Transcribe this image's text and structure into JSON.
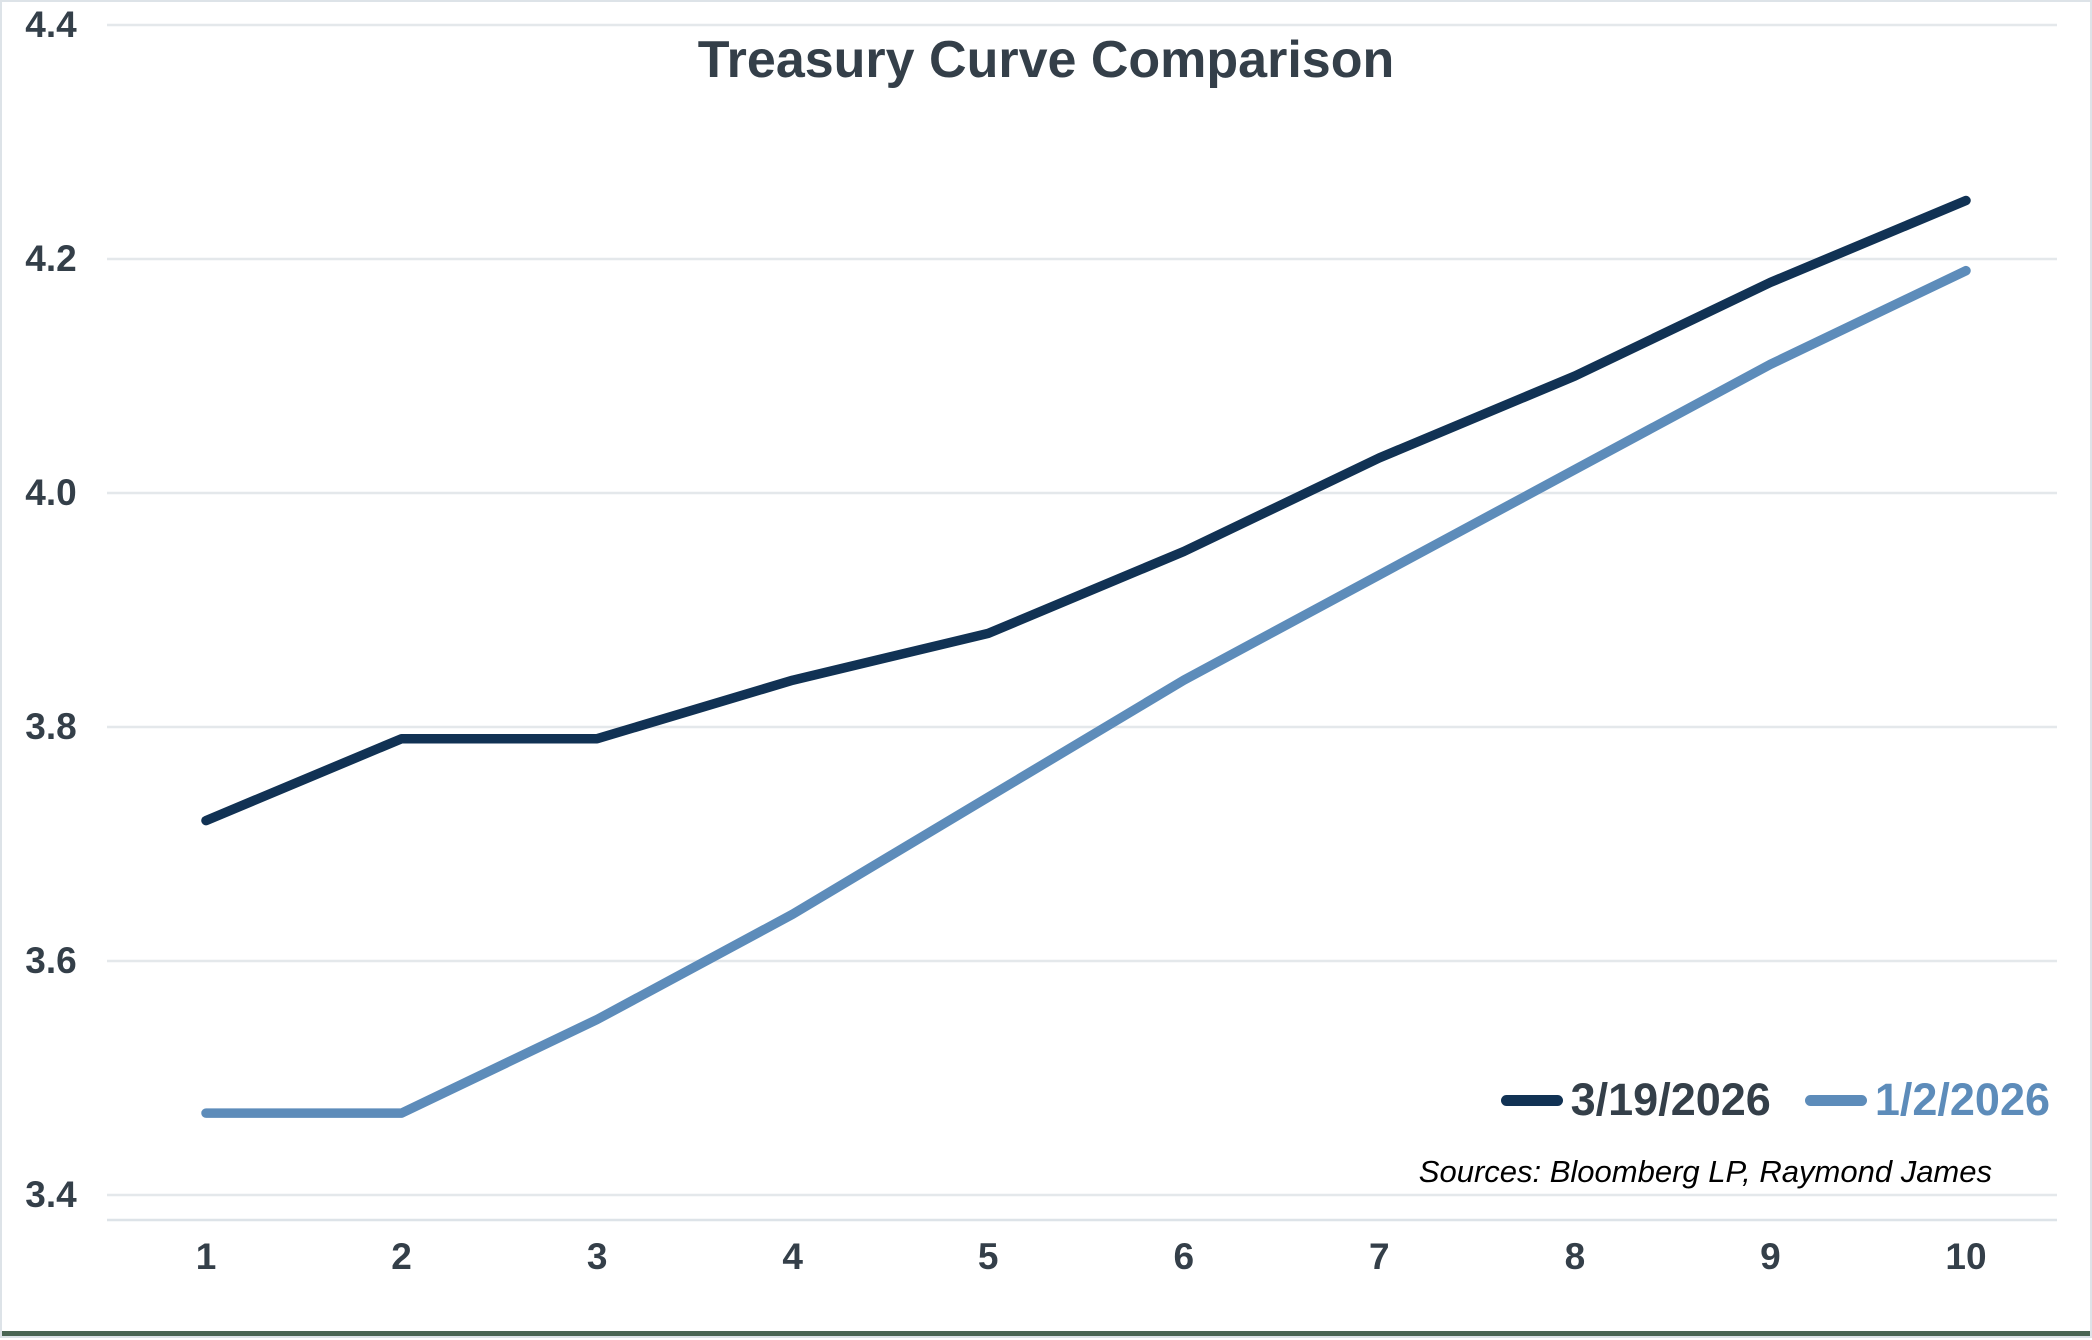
{
  "chart_data": {
    "type": "line",
    "title": "Treasury Curve Comparison",
    "x": [
      1,
      2,
      3,
      4,
      5,
      6,
      7,
      8,
      9,
      10
    ],
    "xlabel": "",
    "ylabel": "",
    "ylim": [
      3.4,
      4.4
    ],
    "yticks": [
      3.4,
      3.6,
      3.8,
      4.0,
      4.2,
      4.4
    ],
    "grid": "horizontal",
    "legend_position": "bottom-right",
    "series": [
      {
        "name": "3/19/2026",
        "color": "#113254",
        "values": [
          3.72,
          3.79,
          3.79,
          3.84,
          3.88,
          3.95,
          4.03,
          4.1,
          4.18,
          4.25
        ]
      },
      {
        "name": "1/2/2026",
        "color": "#5d8cba",
        "values": [
          3.47,
          3.47,
          3.55,
          3.64,
          3.74,
          3.84,
          3.93,
          4.02,
          4.11,
          4.19
        ]
      }
    ],
    "sources": "Sources: Bloomberg LP, Raymond James"
  },
  "style": {
    "grid_color": "#e4e8eb",
    "axis_line_color": "#dde3e8",
    "text_color": "#343f49",
    "frame_border_color": "#dde3e8",
    "bottom_accent_color": "#4a6553"
  }
}
